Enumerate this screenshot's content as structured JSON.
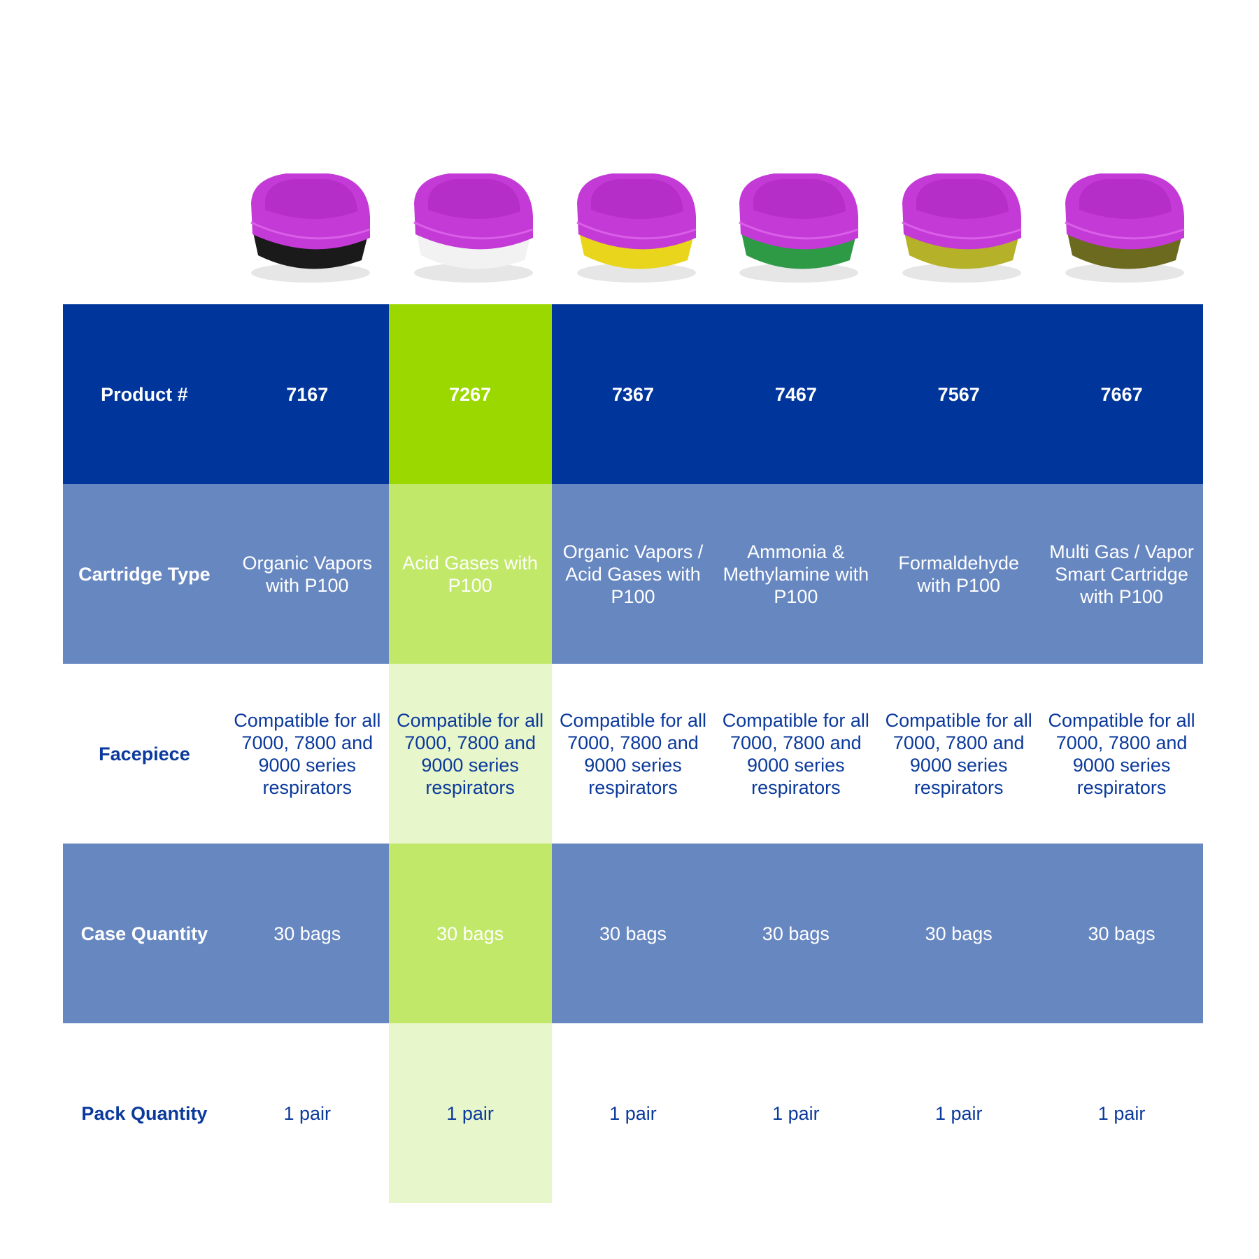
{
  "highlight_column": 1,
  "colors": {
    "header": "#00369b",
    "band": "#6787c1",
    "highlight": "#9bd800",
    "highlight_band": "#c2e86a",
    "highlight_light": "#e8f6cb",
    "text": "#0b3a9c",
    "cartridge": "#c43ad6"
  },
  "row_labels": [
    "Product #",
    "Cartridge Type",
    "Facepiece",
    "Case Quantity",
    "Pack Quantity"
  ],
  "products": [
    {
      "number": "7167",
      "type": "Organic Vapors with P100",
      "facepiece": "Compatible for all 7000, 7800 and 9000 series respirators",
      "case": "30 bags",
      "pack": "1 pair",
      "label_color": "#1a1a1a"
    },
    {
      "number": "7267",
      "type": "Acid Gases with P100",
      "facepiece": "Compatible for all 7000, 7800 and 9000 series respirators",
      "case": "30 bags",
      "pack": "1 pair",
      "label_color": "#f2f2f2"
    },
    {
      "number": "7367",
      "type": "Organic Vapors / Acid Gases with P100",
      "facepiece": "Compatible for all 7000, 7800 and 9000 series respirators",
      "case": "30 bags",
      "pack": "1 pair",
      "label_color": "#e9d51c"
    },
    {
      "number": "7467",
      "type": "Ammonia & Methylamine with P100",
      "facepiece": "Compatible for all 7000, 7800 and 9000 series respirators",
      "case": "30 bags",
      "pack": "1 pair",
      "label_color": "#2e9a45"
    },
    {
      "number": "7567",
      "type": "Formaldehyde with P100",
      "facepiece": "Compatible for all 7000, 7800 and 9000 series respirators",
      "case": "30 bags",
      "pack": "1 pair",
      "label_color": "#b5b22a"
    },
    {
      "number": "7667",
      "type": "Multi Gas / Vapor Smart Cartridge with P100",
      "facepiece": "Compatible for all 7000, 7800 and 9000 series respirators",
      "case": "30 bags",
      "pack": "1 pair",
      "label_color": "#6b6a1e"
    }
  ]
}
